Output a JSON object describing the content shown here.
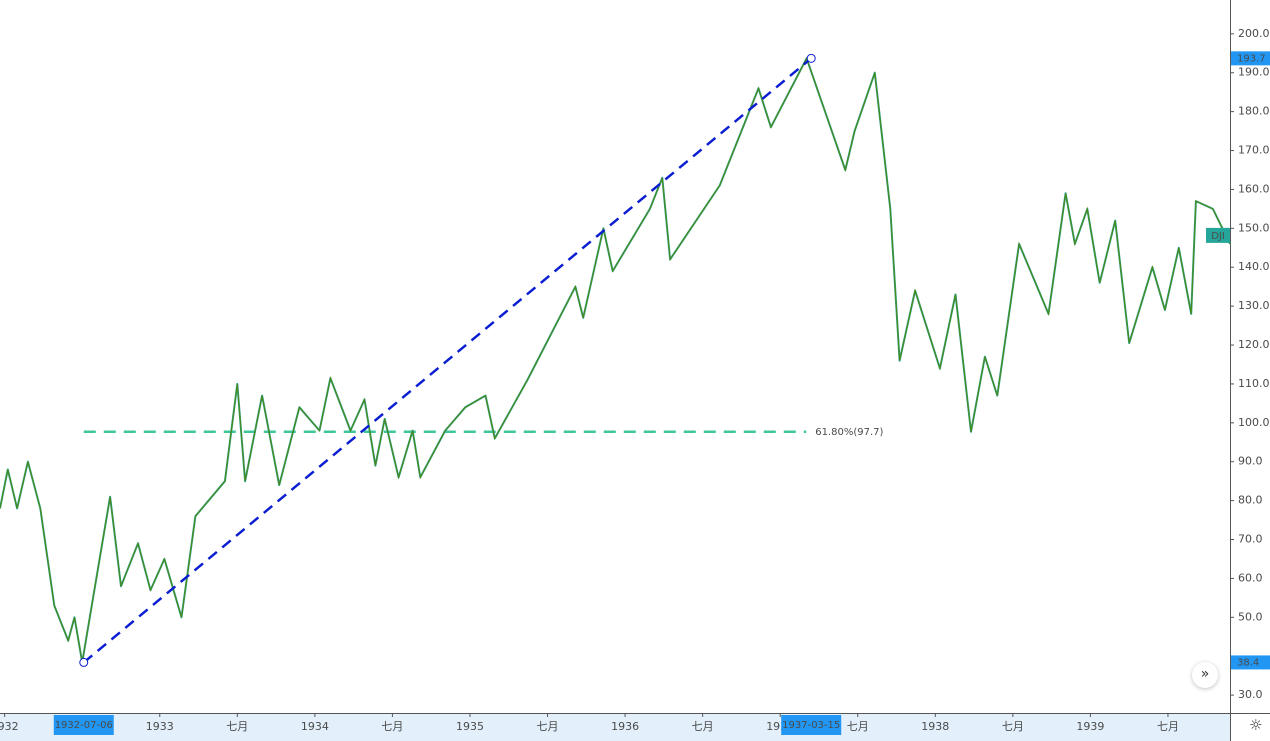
{
  "chart_data": {
    "type": "line",
    "x": [
      1931.97,
      1932.02,
      1932.08,
      1932.15,
      1932.23,
      1932.32,
      1932.41,
      1932.45,
      1932.5,
      1932.68,
      1932.75,
      1932.86,
      1932.94,
      1933.03,
      1933.14,
      1933.23,
      1933.42,
      1933.5,
      1933.55,
      1933.66,
      1933.77,
      1933.9,
      1934.03,
      1934.1,
      1934.23,
      1934.32,
      1934.39,
      1934.45,
      1934.54,
      1934.63,
      1934.68,
      1934.84,
      1934.97,
      1935.1,
      1935.16,
      1935.37,
      1935.68,
      1935.73,
      1935.86,
      1935.92,
      1936.16,
      1936.24,
      1936.29,
      1936.61,
      1936.86,
      1936.94,
      1937.17,
      1937.42,
      1937.48,
      1937.61,
      1937.71,
      1937.77,
      1937.87,
      1938.03,
      1938.13,
      1938.23,
      1938.32,
      1938.4,
      1938.54,
      1938.73,
      1938.84,
      1938.9,
      1938.98,
      1939.06,
      1939.16,
      1939.25,
      1939.4,
      1939.48,
      1939.57,
      1939.65,
      1939.68,
      1939.79,
      1939.9
    ],
    "series": [
      {
        "name": "DJI",
        "color": "#26a69a",
        "values": [
          78,
          88,
          78,
          90,
          78,
          53,
          44,
          50,
          38.4,
          81,
          58,
          69,
          57,
          65,
          50,
          76,
          85,
          110,
          85,
          107,
          84,
          104,
          98,
          111.5,
          98,
          106,
          89,
          101,
          86,
          98,
          86,
          98,
          104,
          107,
          96,
          111,
          135,
          127,
          150,
          139,
          155,
          163,
          142,
          161,
          186,
          176,
          193.7,
          165,
          175,
          190,
          155,
          116,
          134,
          114,
          133,
          97.7,
          117,
          107,
          146,
          128,
          159,
          146,
          155,
          136,
          152,
          120.5,
          140,
          129,
          145,
          128,
          157,
          155,
          146
        ]
      }
    ],
    "xlim": [
      1931.97,
      1939.9
    ],
    "xticks": [
      1932,
      1933,
      {
        "value": 1933.5,
        "label": "七月"
      },
      1934,
      {
        "value": 1934.5,
        "label": "七月"
      },
      1935,
      {
        "value": 1935.5,
        "label": "七月"
      },
      1936,
      {
        "value": 1936.5,
        "label": "七月"
      },
      1937,
      {
        "value": 1937.5,
        "label": "七月"
      },
      1938,
      {
        "value": 1938.5,
        "label": "七月"
      },
      1939,
      {
        "value": 1939.5,
        "label": "七月"
      }
    ],
    "ylim": [
      25.4,
      208.7
    ],
    "yticks": [
      {
        "value": 30,
        "label": "30.0"
      },
      {
        "value": 50,
        "label": "50.0"
      },
      {
        "value": 60,
        "label": "60.0"
      },
      {
        "value": 70,
        "label": "70.0"
      },
      {
        "value": 80,
        "label": "80.0"
      },
      {
        "value": 90,
        "label": "90.0"
      },
      {
        "value": 100,
        "label": "100.0"
      },
      {
        "value": 110,
        "label": "110.0"
      },
      {
        "value": 120,
        "label": "120.0"
      },
      {
        "value": 130,
        "label": "130.0"
      },
      {
        "value": 140,
        "label": "140.0"
      },
      {
        "value": 150,
        "label": "150.0"
      },
      {
        "value": 160,
        "label": "160.0"
      },
      {
        "value": 170,
        "label": "170.0"
      },
      {
        "value": 180,
        "label": "180.0"
      },
      {
        "value": 190,
        "label": "190.0"
      },
      {
        "value": 200,
        "label": "200.0"
      }
    ],
    "trendline": {
      "color": "#0b1ed1",
      "x": [
        1932.51,
        1937.2
      ],
      "y": [
        38.4,
        193.7
      ]
    },
    "fib_level": {
      "color": "#3fc79a",
      "value": 97.7,
      "label": "61.80%(97.7)"
    },
    "price_markers": [
      193.7,
      38.4
    ],
    "date_markers": [
      {
        "value": 1932.51,
        "label": "1932-07-06"
      },
      {
        "value": 1937.2,
        "label": "1937-03-15"
      }
    ]
  }
}
